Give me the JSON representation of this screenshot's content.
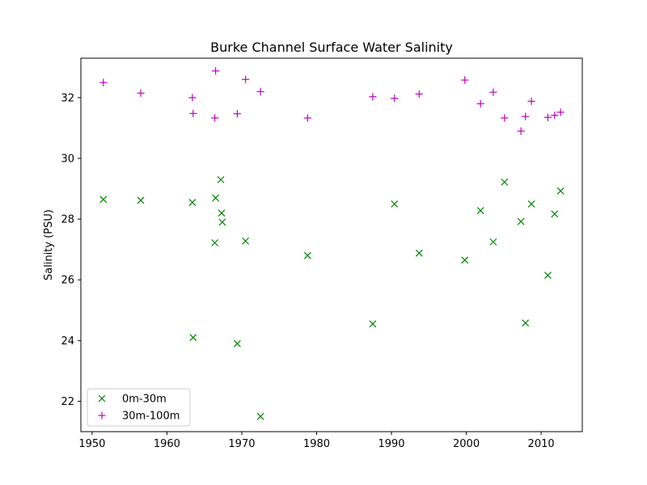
{
  "chart_data": {
    "type": "scatter",
    "title": "Burke Channel Surface Water Salinity",
    "xlabel": "",
    "ylabel": "Salinity (PSU)",
    "xlim": [
      1948.5,
      2015.5
    ],
    "ylim": [
      21.0,
      33.3
    ],
    "xticks": [
      1950,
      1960,
      1970,
      1980,
      1990,
      2000,
      2010
    ],
    "yticks": [
      22,
      24,
      26,
      28,
      30,
      32
    ],
    "grid": false,
    "legend_position": "lower-left",
    "series": [
      {
        "name": "0m-30m",
        "marker": "x",
        "color": "#008000",
        "points": [
          [
            1951.5,
            28.65
          ],
          [
            1956.5,
            28.62
          ],
          [
            1963.4,
            28.55
          ],
          [
            1963.5,
            24.1
          ],
          [
            1966.4,
            27.22
          ],
          [
            1966.5,
            28.7
          ],
          [
            1967.2,
            29.3
          ],
          [
            1967.3,
            28.2
          ],
          [
            1967.4,
            27.9
          ],
          [
            1969.4,
            23.9
          ],
          [
            1970.5,
            27.28
          ],
          [
            1972.5,
            21.5
          ],
          [
            1978.8,
            26.8
          ],
          [
            1987.5,
            24.55
          ],
          [
            1990.4,
            28.5
          ],
          [
            1993.7,
            26.88
          ],
          [
            1999.8,
            26.65
          ],
          [
            2001.9,
            28.28
          ],
          [
            2003.6,
            27.25
          ],
          [
            2005.1,
            29.22
          ],
          [
            2007.3,
            27.92
          ],
          [
            2007.9,
            24.58
          ],
          [
            2008.7,
            28.5
          ],
          [
            2010.9,
            26.15
          ],
          [
            2011.8,
            28.17
          ],
          [
            2012.6,
            28.93
          ]
        ]
      },
      {
        "name": "30m-100m",
        "marker": "+",
        "color": "#bf00bf",
        "points": [
          [
            1951.5,
            32.5
          ],
          [
            1956.5,
            32.15
          ],
          [
            1963.4,
            32.0
          ],
          [
            1963.5,
            31.48
          ],
          [
            1966.4,
            31.33
          ],
          [
            1966.5,
            32.88
          ],
          [
            1969.4,
            31.47
          ],
          [
            1970.5,
            32.6
          ],
          [
            1972.5,
            32.2
          ],
          [
            1978.8,
            31.33
          ],
          [
            1987.5,
            32.03
          ],
          [
            1990.4,
            31.98
          ],
          [
            1993.7,
            32.12
          ],
          [
            1999.8,
            32.58
          ],
          [
            2001.9,
            31.8
          ],
          [
            2003.6,
            32.18
          ],
          [
            2005.1,
            31.33
          ],
          [
            2007.3,
            30.9
          ],
          [
            2007.9,
            31.38
          ],
          [
            2008.7,
            31.88
          ],
          [
            2010.9,
            31.35
          ],
          [
            2011.8,
            31.42
          ],
          [
            2012.6,
            31.52
          ]
        ]
      }
    ]
  }
}
